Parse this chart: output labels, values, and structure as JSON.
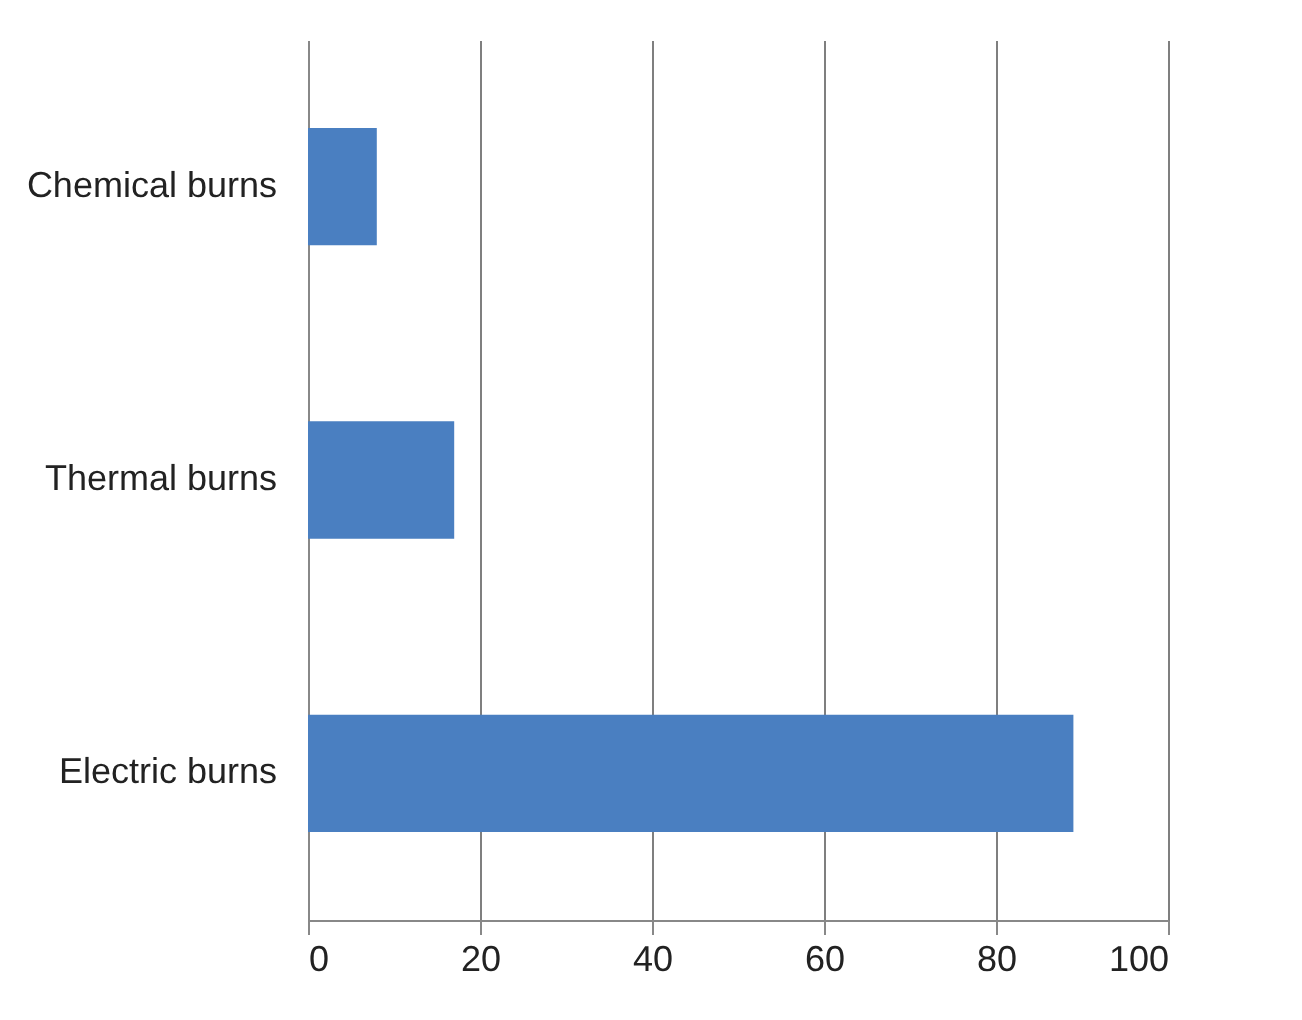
{
  "chart_data": {
    "type": "bar",
    "orientation": "horizontal",
    "categories": [
      "Chemical burns",
      "Thermal burns",
      "Electric burns"
    ],
    "series": [
      {
        "color": "#4a7fc1",
        "values": [
          8,
          17,
          89
        ]
      }
    ],
    "xlim": [
      0,
      100
    ],
    "xticks": [
      0,
      20,
      40,
      60,
      80,
      100
    ],
    "grid": "x"
  }
}
